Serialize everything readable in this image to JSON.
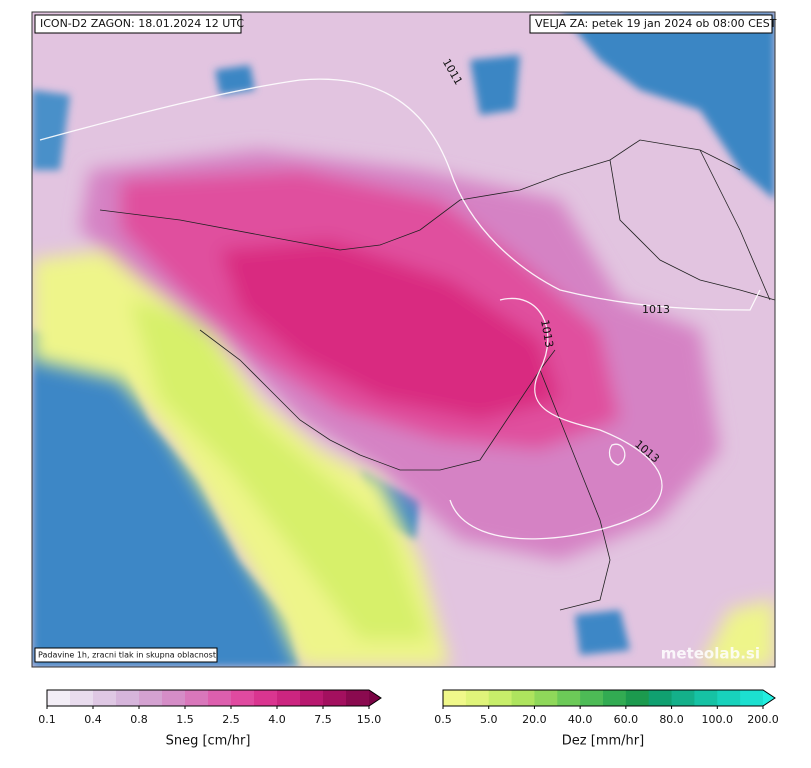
{
  "header": {
    "run": "ICON-D2 ZAGON: 18.01.2024 12 UTC",
    "valid": "VELJA ZA: petek 19 jan 2024 ob 08:00 CEST"
  },
  "map": {
    "note": "Padavine 1h, zracni tlak in skupna oblacnost",
    "watermark": "meteolab.si",
    "isobar_labels": [
      "1013",
      "1013",
      "1013",
      "1011"
    ]
  },
  "legend": {
    "snow": {
      "title": "Sneg [cm/hr]",
      "ticks": [
        "0.1",
        "0.4",
        "0.8",
        "1.5",
        "2.5",
        "4.0",
        "7.5",
        "15.0"
      ]
    },
    "rain": {
      "title": "Dez [mm/hr]",
      "ticks": [
        "0.5",
        "5.0",
        "20.0",
        "40.0",
        "60.0",
        "80.0",
        "100.0",
        "200.0"
      ]
    }
  }
}
